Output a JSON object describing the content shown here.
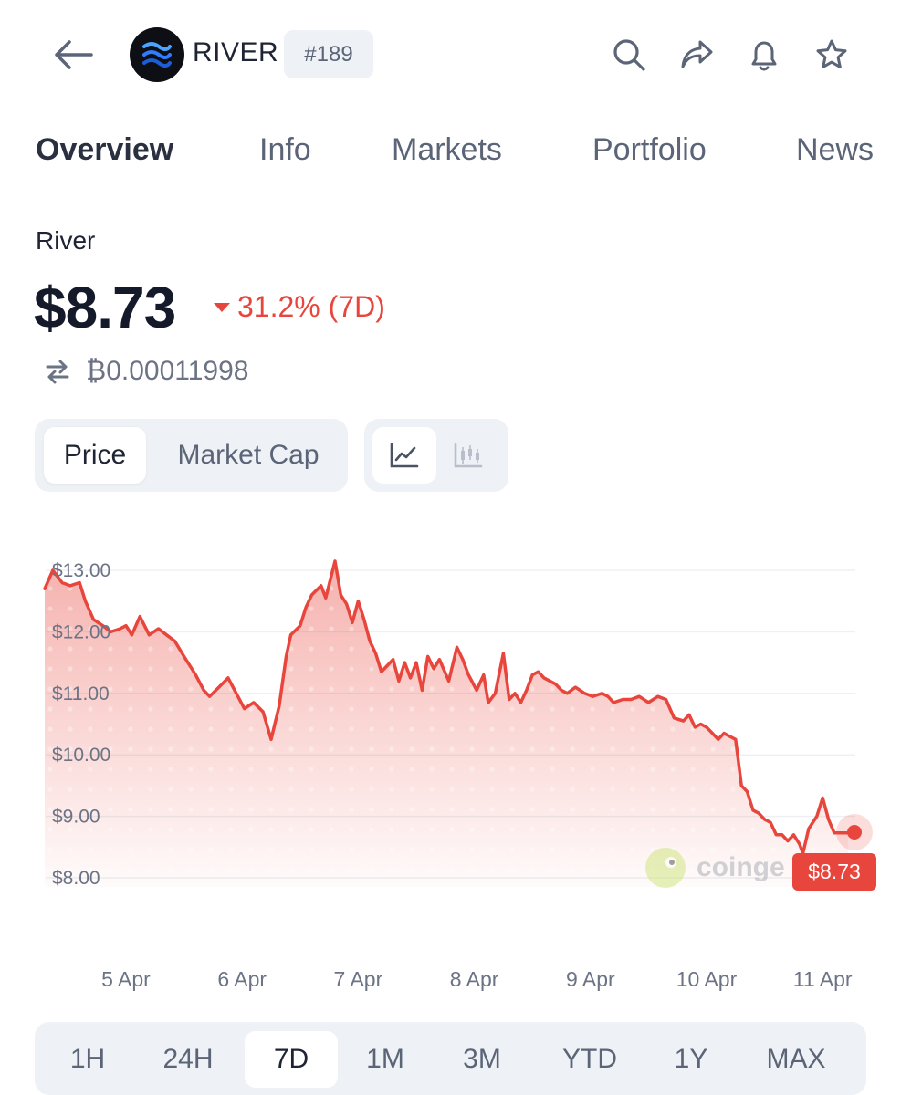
{
  "header": {
    "coin_name": "RIVER",
    "rank": "#189",
    "icons": [
      "back-arrow-icon",
      "search-icon",
      "share-icon",
      "bell-icon",
      "star-icon"
    ]
  },
  "tabs": [
    {
      "label": "Overview",
      "active": true
    },
    {
      "label": "Info",
      "active": false
    },
    {
      "label": "Markets",
      "active": false
    },
    {
      "label": "Portfolio",
      "active": false
    },
    {
      "label": "News",
      "active": false
    }
  ],
  "asset": {
    "name": "River",
    "price": "$8.73",
    "change": "31.2% (7D)",
    "btc_price": "₿0.00011998"
  },
  "chart_toggle": {
    "price_label": "Price",
    "market_cap_label": "Market Cap",
    "selected": "Price",
    "view_icons": [
      "line-chart-icon",
      "candlestick-chart-icon"
    ]
  },
  "chart_data": {
    "type": "area",
    "y_ticks": [
      "$13.00",
      "$12.00",
      "$11.00",
      "$10.00",
      "$9.00",
      "$8.00"
    ],
    "ylim": [
      8.0,
      13.0
    ],
    "x_ticks": [
      "5 Apr",
      "6 Apr",
      "7 Apr",
      "8 Apr",
      "9 Apr",
      "10 Apr",
      "11 Apr"
    ],
    "current_label": "$8.73",
    "watermark": "coinge",
    "line_color": "#e8463d",
    "x": [
      4.3,
      4.37,
      4.45,
      4.52,
      4.6,
      4.65,
      4.72,
      4.8,
      4.87,
      4.95,
      5.0,
      5.05,
      5.12,
      5.2,
      5.28,
      5.35,
      5.42,
      5.5,
      5.6,
      5.67,
      5.72,
      5.8,
      5.88,
      5.95,
      6.02,
      6.1,
      6.18,
      6.25,
      6.32,
      6.38,
      6.42,
      6.5,
      6.55,
      6.6,
      6.68,
      6.72,
      6.8,
      6.85,
      6.9,
      6.95,
      7.0,
      7.05,
      7.1,
      7.15,
      7.2,
      7.25,
      7.3,
      7.35,
      7.4,
      7.45,
      7.5,
      7.55,
      7.6,
      7.65,
      7.7,
      7.78,
      7.85,
      7.9,
      7.95,
      8.02,
      8.08,
      8.12,
      8.18,
      8.25,
      8.3,
      8.35,
      8.4,
      8.45,
      8.5,
      8.55,
      8.6,
      8.65,
      8.7,
      8.75,
      8.8,
      8.87,
      8.95,
      9.02,
      9.1,
      9.15,
      9.2,
      9.28,
      9.35,
      9.42,
      9.5,
      9.58,
      9.65,
      9.72,
      9.8,
      9.85,
      9.9,
      9.95,
      10.0,
      10.05,
      10.1,
      10.15,
      10.2,
      10.25,
      10.3,
      10.35,
      10.4,
      10.45,
      10.5,
      10.55,
      10.6,
      10.65,
      10.7,
      10.75,
      10.8,
      10.83,
      10.88,
      10.95,
      11.0,
      11.05,
      11.1,
      11.13,
      11.17,
      11.22
    ],
    "y": [
      12.7,
      13.0,
      12.8,
      12.75,
      12.8,
      12.5,
      12.2,
      12.1,
      12.0,
      12.05,
      12.1,
      11.95,
      12.25,
      11.95,
      12.05,
      11.95,
      11.85,
      11.6,
      11.3,
      11.05,
      10.95,
      11.1,
      11.25,
      11.0,
      10.75,
      10.85,
      10.7,
      10.25,
      10.8,
      11.6,
      11.95,
      12.1,
      12.4,
      12.6,
      12.75,
      12.55,
      13.15,
      12.6,
      12.45,
      12.15,
      12.5,
      12.2,
      11.85,
      11.65,
      11.35,
      11.45,
      11.55,
      11.2,
      11.5,
      11.25,
      11.5,
      11.05,
      11.6,
      11.4,
      11.55,
      11.2,
      11.75,
      11.55,
      11.3,
      11.05,
      11.3,
      10.85,
      11.0,
      11.65,
      10.9,
      11.0,
      10.85,
      11.05,
      11.3,
      11.35,
      11.25,
      11.2,
      11.15,
      11.05,
      11.0,
      11.1,
      11.0,
      10.95,
      11.0,
      10.95,
      10.85,
      10.9,
      10.9,
      10.95,
      10.85,
      10.95,
      10.9,
      10.6,
      10.55,
      10.65,
      10.45,
      10.5,
      10.45,
      10.35,
      10.25,
      10.35,
      10.3,
      10.25,
      9.5,
      9.4,
      9.1,
      9.05,
      8.95,
      8.9,
      8.7,
      8.7,
      8.6,
      8.7,
      8.55,
      8.4,
      8.8,
      9.0,
      9.3,
      8.95,
      8.73,
      8.73,
      8.73,
      8.73
    ]
  },
  "time_ranges": [
    {
      "label": "1H",
      "selected": false
    },
    {
      "label": "24H",
      "selected": false
    },
    {
      "label": "7D",
      "selected": true
    },
    {
      "label": "1M",
      "selected": false
    },
    {
      "label": "3M",
      "selected": false
    },
    {
      "label": "YTD",
      "selected": false
    },
    {
      "label": "1Y",
      "selected": false
    },
    {
      "label": "MAX",
      "selected": false
    }
  ]
}
